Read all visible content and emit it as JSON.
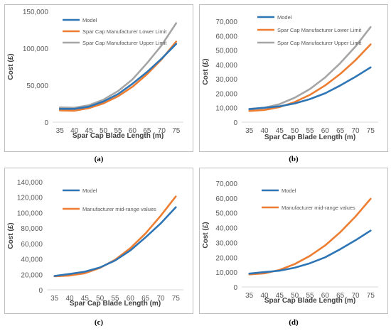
{
  "chart_data": [
    {
      "type": "line",
      "label": "(a)",
      "xlabel": "Spar Cap Blade Length (m)",
      "ylabel": "Cost (£)",
      "x": [
        35,
        40,
        45,
        50,
        55,
        60,
        65,
        70,
        75
      ],
      "ylim": [
        0,
        150000
      ],
      "yticks": [
        0,
        50000,
        100000,
        150000
      ],
      "ytick_labels": [
        "0",
        "50,000",
        "100,000",
        "150,000"
      ],
      "legend_position": "top-left",
      "series": [
        {
          "name": "Model",
          "color": "#2e75b6",
          "values": [
            18000,
            18000,
            21000,
            28000,
            38000,
            52000,
            68000,
            86000,
            106000
          ]
        },
        {
          "name": "Spar Cap Manufacturer Lower Limit",
          "color": "#ed7d31",
          "values": [
            16000,
            15500,
            19000,
            25500,
            35000,
            48000,
            65000,
            85000,
            109000
          ]
        },
        {
          "name": "Spar Cap Manufacturer Upper Limit",
          "color": "#a5a5a5",
          "values": [
            20000,
            19500,
            23000,
            30500,
            42000,
            58000,
            80000,
            104000,
            134000
          ]
        }
      ]
    },
    {
      "type": "line",
      "label": "(b)",
      "xlabel": "Spar Cap Blade  Length (m)",
      "ylabel": "Cost (£)",
      "x": [
        35,
        40,
        45,
        50,
        55,
        60,
        65,
        70,
        75
      ],
      "ylim": [
        0,
        70000
      ],
      "yticks": [
        0,
        10000,
        20000,
        30000,
        40000,
        50000,
        60000,
        70000
      ],
      "ytick_labels": [
        "0",
        "10,000",
        "20,000",
        "30,000",
        "40,000",
        "50,000",
        "60,000",
        "70,000"
      ],
      "legend_position": "top-left",
      "series": [
        {
          "name": "Model",
          "color": "#2e75b6",
          "values": [
            9000,
            10000,
            11000,
            13000,
            16000,
            20000,
            25500,
            31500,
            38000
          ]
        },
        {
          "name": "Spar Cap Manufacturer Lower Limit",
          "color": "#ed7d31",
          "values": [
            7800,
            8500,
            10500,
            14000,
            19000,
            25500,
            33500,
            43000,
            54000
          ]
        },
        {
          "name": "Spar Cap Manufacturer Upper Limit",
          "color": "#a5a5a5",
          "values": [
            9200,
            10000,
            12500,
            17000,
            23000,
            31000,
            41000,
            52500,
            66000
          ]
        }
      ]
    },
    {
      "type": "line",
      "label": "(c)",
      "xlabel": "Spar Cap Blade Length (m)",
      "ylabel": "Cost (£)",
      "x": [
        35,
        40,
        45,
        50,
        55,
        60,
        65,
        70,
        75
      ],
      "ylim": [
        0,
        140000
      ],
      "yticks": [
        0,
        20000,
        40000,
        60000,
        80000,
        100000,
        120000,
        140000
      ],
      "ytick_labels": [
        "0",
        "20,000",
        "40,000",
        "60,000",
        "80,000",
        "100,000",
        "120,000",
        "140,000"
      ],
      "legend_position": "top-left",
      "series": [
        {
          "name": "Model",
          "color": "#2e75b6",
          "values": [
            18000,
            20500,
            23500,
            29000,
            38000,
            51000,
            68000,
            86000,
            107000
          ]
        },
        {
          "name": "Manufacturer mid-range values",
          "color": "#ed7d31",
          "values": [
            17500,
            18500,
            21500,
            28500,
            39000,
            54000,
            73000,
            96000,
            121000
          ]
        }
      ]
    },
    {
      "type": "line",
      "label": "(d)",
      "xlabel": "Spar Cap Blade Length (m)",
      "ylabel": "Cost (£)",
      "x": [
        35,
        40,
        45,
        50,
        55,
        60,
        65,
        70,
        75
      ],
      "ylim": [
        0,
        70000
      ],
      "yticks": [
        0,
        10000,
        20000,
        30000,
        40000,
        50000,
        60000,
        70000
      ],
      "ytick_labels": [
        "0",
        "10,000",
        "20,000",
        "30,000",
        "40,000",
        "50,000",
        "60,000",
        "70,000"
      ],
      "legend_position": "top-left",
      "series": [
        {
          "name": "Model",
          "color": "#2e75b6",
          "values": [
            9000,
            10000,
            11000,
            13000,
            16000,
            20000,
            25500,
            31500,
            38000
          ]
        },
        {
          "name": "Manufacturer mid-range values",
          "color": "#ed7d31",
          "values": [
            8500,
            9200,
            11500,
            15500,
            21000,
            28000,
            37000,
            47500,
            59500
          ]
        }
      ]
    }
  ]
}
